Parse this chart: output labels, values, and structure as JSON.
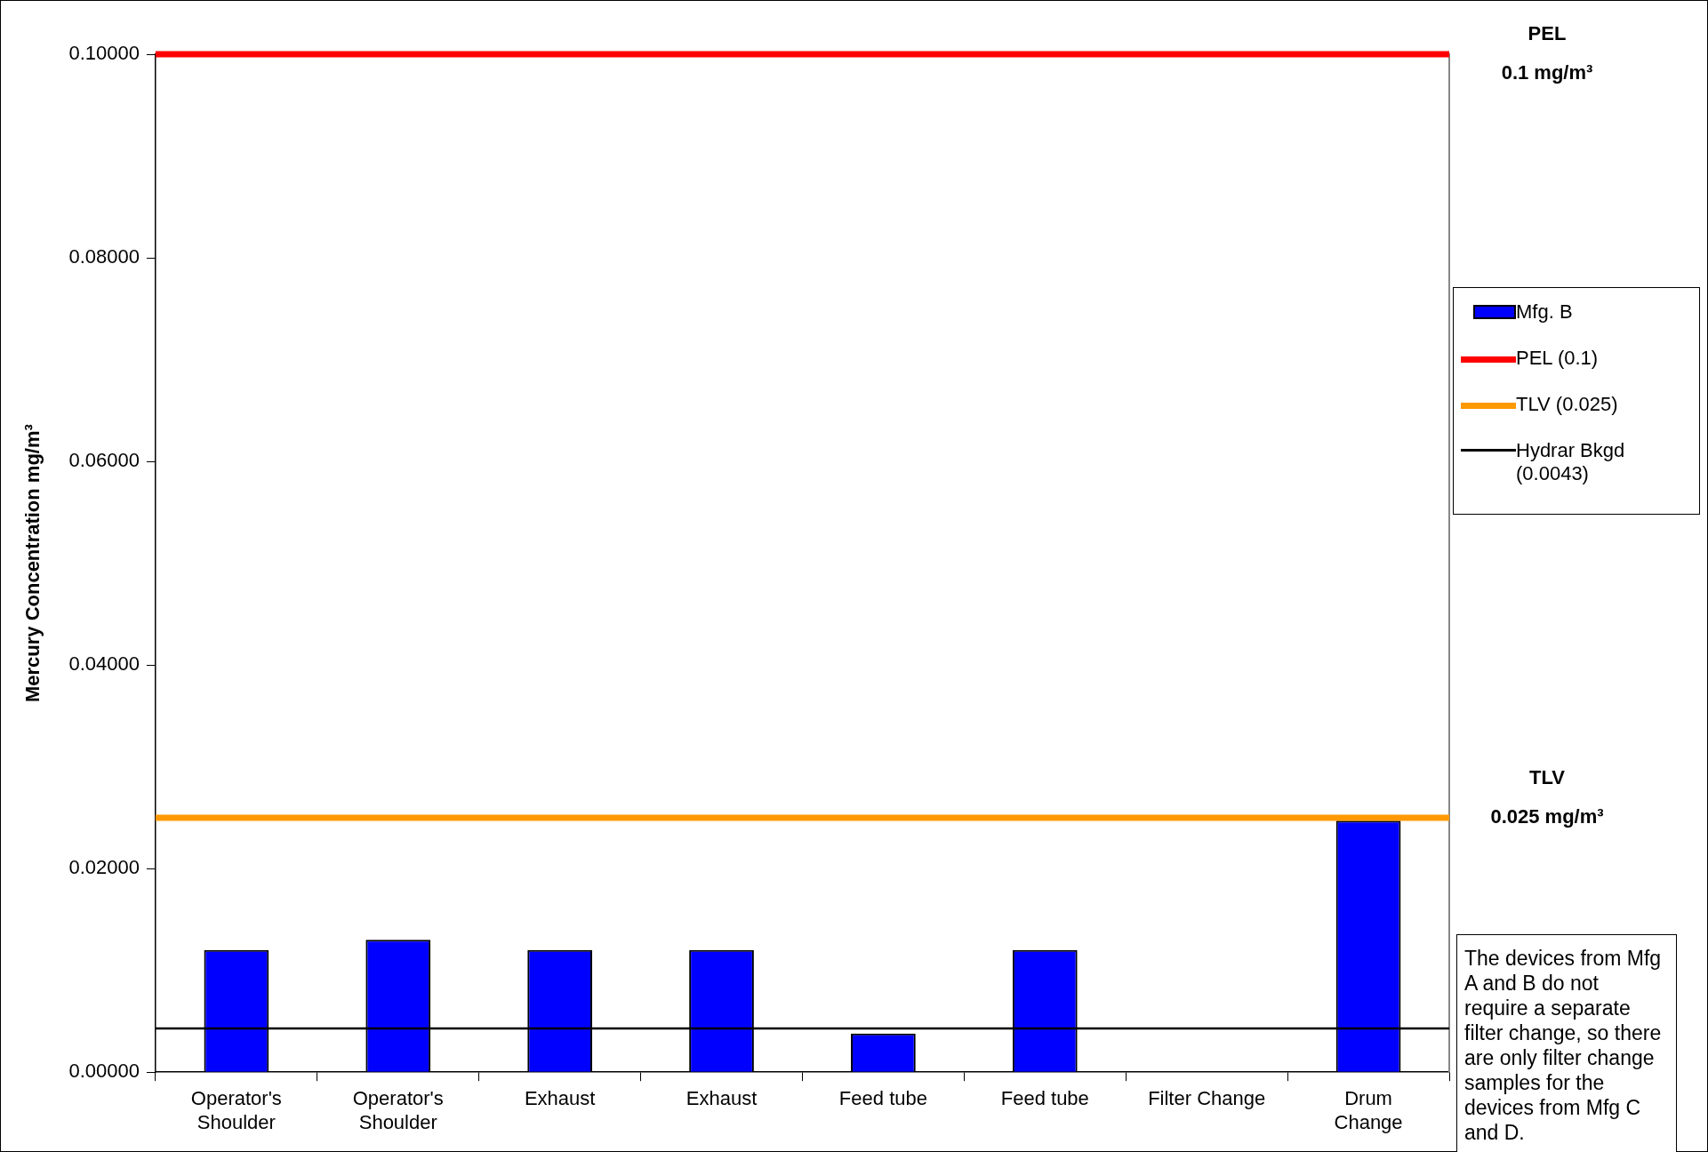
{
  "chart_data": {
    "type": "bar",
    "ylabel": "Mercury Concentration mg/m³",
    "categories": [
      "Operator's\nShoulder",
      "Operator's\nShoulder",
      "Exhaust",
      "Exhaust",
      "Feed tube",
      "Feed tube",
      "Filter Change",
      "Drum\nChange"
    ],
    "series": [
      {
        "name": "Mfg. B",
        "color": "#0000ff",
        "values": [
          0.012,
          0.013,
          0.012,
          0.012,
          0.0038,
          0.012,
          null,
          0.0247
        ]
      }
    ],
    "ylim": [
      0,
      0.1
    ],
    "yticks": [
      {
        "value": 0,
        "label": "0.00000"
      },
      {
        "value": 0.02,
        "label": "0.02000"
      },
      {
        "value": 0.04,
        "label": "0.04000"
      },
      {
        "value": 0.06,
        "label": "0.06000"
      },
      {
        "value": 0.08,
        "label": "0.08000"
      },
      {
        "value": 0.1,
        "label": "0.10000"
      }
    ],
    "ref_lines": [
      {
        "axis": "y",
        "value": 0.1,
        "label": "PEL (0.1)",
        "color": "#ff0000"
      },
      {
        "axis": "y",
        "value": 0.025,
        "label": "TLV (0.025)",
        "color": "#ff9900"
      },
      {
        "axis": "y",
        "value": 0.0043,
        "label": "Hydrar Bkgd\n(0.0043)",
        "color": "#000000"
      }
    ],
    "annotations": [
      "PEL\n0.1 mg/m³",
      "TLV\n0.025 mg/m³",
      "The devices from Mfg A and B do not require a separate filter change, so there are only filter change samples for the devices from Mfg C and D."
    ],
    "grid": false,
    "legend": "right"
  }
}
